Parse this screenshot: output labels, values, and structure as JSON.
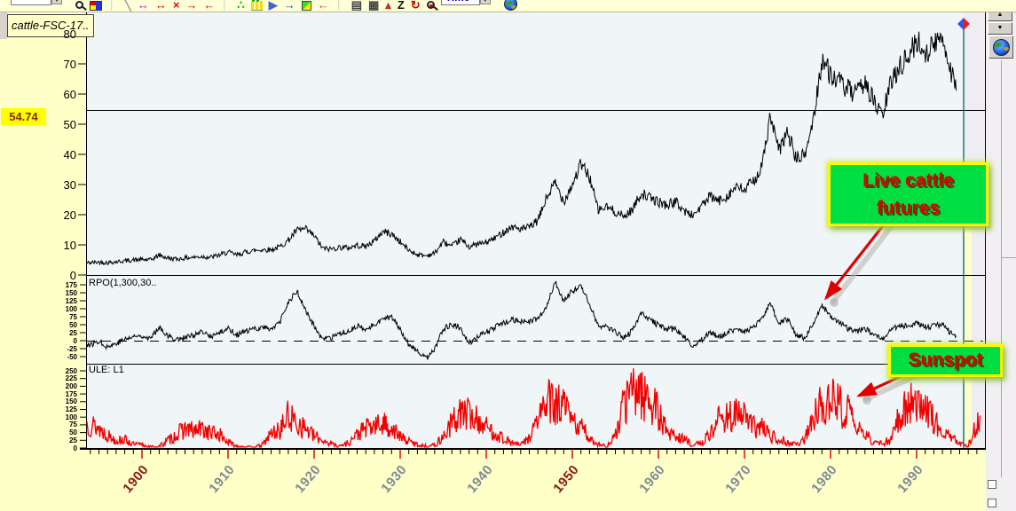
{
  "toolbar": {
    "spinner_up": "▲",
    "spinner_down": "▼",
    "items": [
      {
        "name": "text-style-dropdown",
        "type": "dropdown",
        "label": "text"
      },
      {
        "name": "zoom-tool-icon",
        "type": "magnifier"
      },
      {
        "name": "color-fill-icon",
        "type": "palette"
      },
      {
        "name": "separator-1",
        "type": "separator"
      },
      {
        "name": "trendline-tool-icon",
        "ch": "╲",
        "color": "#a0a0a0"
      },
      {
        "name": "fib-span-tool-icon",
        "ch": "↔",
        "color": "#ee00ee"
      },
      {
        "name": "span-expand-icon",
        "ch": "↔",
        "color": "#ee0000"
      },
      {
        "name": "span-delete-icon",
        "ch": "×",
        "color": "#ee0000"
      },
      {
        "name": "pan-right-icon",
        "ch": "→",
        "color": "#ee0000"
      },
      {
        "name": "pan-left-icon",
        "ch": "←",
        "color": "#ee0000"
      },
      {
        "name": "separator-2",
        "type": "separator"
      },
      {
        "name": "tick-chart-icon",
        "ch": "∴",
        "color": "#00aa00"
      },
      {
        "name": "bar-style-icon",
        "type": "bars"
      },
      {
        "name": "pointer-mode-icon",
        "ch": "▶",
        "color": "#4466cc"
      },
      {
        "name": "goto-last-icon",
        "ch": "→",
        "color": "#2244cc"
      },
      {
        "name": "scale-mode-icon",
        "type": "greensq"
      },
      {
        "name": "undo-pan-icon",
        "ch": "←",
        "color": "#dd4444"
      },
      {
        "name": "separator-3",
        "type": "separator"
      },
      {
        "name": "data-window-icon",
        "ch": "▤",
        "color": "#444444"
      },
      {
        "name": "keyboard-icon",
        "ch": "▦",
        "color": "#444444"
      },
      {
        "name": "study-chart-icon",
        "ch": "▴",
        "color": "#bb3333"
      },
      {
        "name": "zoom-z-icon",
        "ch": "Z",
        "color": "#111111"
      },
      {
        "name": "reload-icon",
        "ch": "↻",
        "color": "#cc0000"
      },
      {
        "name": "chart-preview-icon",
        "type": "magnifier-red"
      },
      {
        "name": "time-dropdown",
        "type": "dropdown-blue",
        "label": "Time"
      },
      {
        "name": "globe-icon",
        "type": "globe"
      }
    ]
  },
  "right_panel": {
    "scroll_up_label": "▲",
    "scroll_down_label": "▼"
  },
  "chart": {
    "instrument_label": "cattle-FSC-17..",
    "cursor_price": "54.74",
    "price_panel": {
      "yticks": [
        80,
        70,
        60,
        50,
        40,
        30,
        20,
        10,
        0
      ],
      "cursor_line_value": 54.74
    },
    "rpo_panel": {
      "label": "RPO(1,300,30..",
      "yticks": [
        175,
        150,
        125,
        100,
        75,
        50,
        25,
        0,
        -25,
        -50
      ],
      "zero_line_dashed": true
    },
    "sunspot_panel": {
      "label": "ULE: L1",
      "yticks": [
        250,
        225,
        200,
        175,
        150,
        125,
        100,
        75,
        50,
        25,
        0
      ]
    },
    "x_axis": {
      "tick_year_start": 1894,
      "tick_year_end": 1997,
      "decade_labels": [
        1900,
        1910,
        1920,
        1930,
        1940,
        1950,
        1960,
        1970,
        1980,
        1990
      ],
      "red_decades": [
        1900,
        1950
      ]
    }
  },
  "annotations": {
    "live_cattle": {
      "text": "Live cattle futures",
      "box_color": "#00df42",
      "border_color": "#fbfb00",
      "text_color": "#e10000"
    },
    "sunspot": {
      "text": "Sunspot",
      "box_color": "#00df42",
      "border_color": "#fbfb00",
      "text_color": "#e10000"
    }
  },
  "colors": {
    "window_background": "#ffffc8",
    "plot_background": "#f0f5f7",
    "cursor_line": "#107070",
    "cursor_diamond_left": "#3355ee",
    "cursor_diamond_right": "#dd2222",
    "sunspot_series": "#f20000",
    "price_series": "#000000",
    "decade_tick": "#cc0000",
    "price_badge_bg": "#ffff00",
    "x_label_gray": "#7e8a96",
    "x_label_red": "#8b1818"
  },
  "chart_data": [
    {
      "type": "line",
      "name": "Live cattle futures price",
      "panel": "price",
      "color": "#000000",
      "ylim": [
        0,
        85
      ],
      "x_start_year": 1893,
      "x_step_years": 1,
      "values": [
        4.0,
        4.1,
        4.3,
        4.1,
        4.4,
        4.7,
        5.0,
        5.1,
        5.0,
        6.6,
        5.6,
        5.3,
        5.6,
        5.9,
        6.1,
        5.9,
        6.6,
        7.6,
        6.6,
        7.6,
        8.1,
        8.4,
        8.4,
        9.3,
        11.5,
        14.8,
        15.2,
        13.0,
        8.8,
        8.6,
        9.2,
        9.0,
        9.8,
        9.5,
        11.3,
        14.5,
        13.6,
        11.0,
        8.2,
        6.8,
        6.4,
        7.2,
        11.0,
        9.4,
        11.8,
        9.4,
        10.2,
        10.8,
        12.2,
        14.3,
        16.0,
        15.2,
        15.8,
        18.0,
        25.5,
        30.5,
        24.5,
        30.0,
        36.8,
        32.5,
        21.5,
        22.5,
        21.0,
        19.3,
        21.8,
        27.2,
        25.5,
        24.2,
        23.2,
        24.3,
        21.2,
        19.8,
        22.8,
        26.0,
        24.5,
        26.3,
        29.0,
        28.2,
        31.0,
        35.5,
        52.5,
        41.0,
        47.5,
        38.5,
        39.5,
        51.5,
        71.5,
        66.5,
        64.0,
        61.5,
        59.5,
        64.5,
        57.5,
        52.5,
        63.5,
        69.5,
        72.0,
        77.5,
        74.0,
        76.0,
        79.5,
        67.5,
        61.5,
        58.5
      ]
    },
    {
      "type": "line",
      "name": "RPO(1,300,30..) oscillator",
      "panel": "rpo",
      "color": "#000000",
      "ylim": [
        -50,
        175
      ],
      "x_start_year": 1893,
      "x_step_years": 1,
      "values": [
        -5,
        -14,
        0,
        -20,
        -8,
        4,
        12,
        17,
        6,
        45,
        14,
        4,
        10,
        17,
        26,
        13,
        24,
        40,
        18,
        28,
        36,
        42,
        38,
        55,
        120,
        155,
        95,
        45,
        2,
        8,
        20,
        32,
        46,
        33,
        52,
        68,
        72,
        38,
        -12,
        -36,
        -56,
        -28,
        38,
        50,
        42,
        -8,
        12,
        26,
        42,
        56,
        66,
        58,
        60,
        68,
        105,
        185,
        125,
        155,
        172,
        115,
        48,
        44,
        28,
        8,
        32,
        85,
        66,
        48,
        34,
        38,
        12,
        -20,
        2,
        28,
        12,
        24,
        38,
        28,
        42,
        65,
        115,
        55,
        68,
        18,
        8,
        55,
        110,
        78,
        58,
        38,
        28,
        38,
        18,
        4,
        32,
        48,
        46,
        58,
        42,
        46,
        52,
        22,
        10,
        6
      ]
    },
    {
      "type": "line",
      "name": "Sunspot number ULE: L1",
      "panel": "sunspot",
      "color": "#f20000",
      "ylim": [
        0,
        250
      ],
      "x_start_year": 1893,
      "x_step_years": 1,
      "values": [
        85,
        78,
        64,
        42,
        26,
        27,
        12,
        10,
        3,
        5,
        24,
        42,
        64,
        54,
        62,
        49,
        44,
        19,
        6,
        4,
        1,
        10,
        47,
        57,
        104,
        81,
        64,
        38,
        26,
        14,
        6,
        17,
        44,
        64,
        69,
        78,
        65,
        36,
        21,
        11,
        6,
        9,
        36,
        80,
        114,
        110,
        89,
        68,
        48,
        31,
        16,
        10,
        33,
        93,
        152,
        136,
        135,
        84,
        69,
        31,
        14,
        4,
        38,
        142,
        190,
        185,
        159,
        112,
        54,
        38,
        28,
        10,
        15,
        47,
        94,
        106,
        106,
        104,
        67,
        69,
        38,
        34,
        16,
        13,
        27,
        92,
        155,
        155,
        140,
        116,
        67,
        46,
        18,
        13,
        29,
        100,
        158,
        143,
        146,
        94,
        55,
        30,
        18,
        9,
        75
      ]
    }
  ]
}
